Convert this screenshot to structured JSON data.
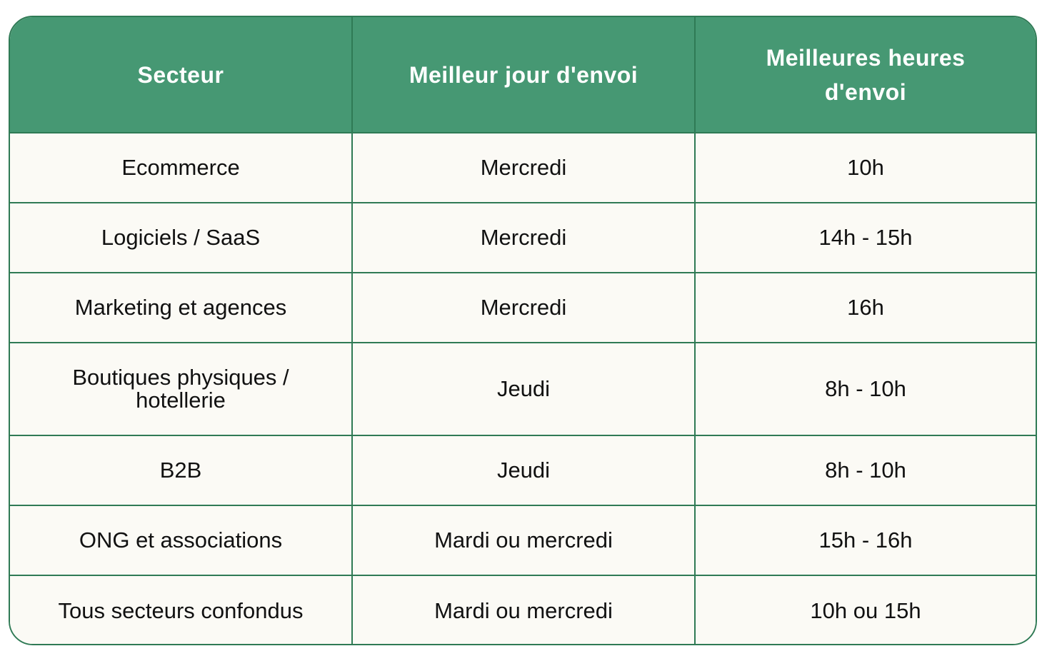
{
  "table": {
    "headers": [
      "Secteur",
      "Meilleur jour d'envoi",
      "Meilleures heures d'envoi"
    ],
    "rows": [
      [
        "Ecommerce",
        "Mercredi",
        "10h"
      ],
      [
        "Logiciels / SaaS",
        "Mercredi",
        "14h - 15h"
      ],
      [
        "Marketing et agences",
        "Mercredi",
        "16h"
      ],
      [
        "Boutiques physiques / hotellerie",
        "Jeudi",
        "8h - 10h"
      ],
      [
        "B2B",
        "Jeudi",
        "8h - 10h"
      ],
      [
        "ONG et associations",
        "Mardi ou mercredi",
        "15h - 16h"
      ],
      [
        "Tous secteurs confondus",
        "Mardi ou mercredi",
        "10h ou 15h"
      ]
    ],
    "colors": {
      "header_bg": "#469873",
      "border": "#2f7a55",
      "cell_bg": "#fbfaf5"
    }
  }
}
